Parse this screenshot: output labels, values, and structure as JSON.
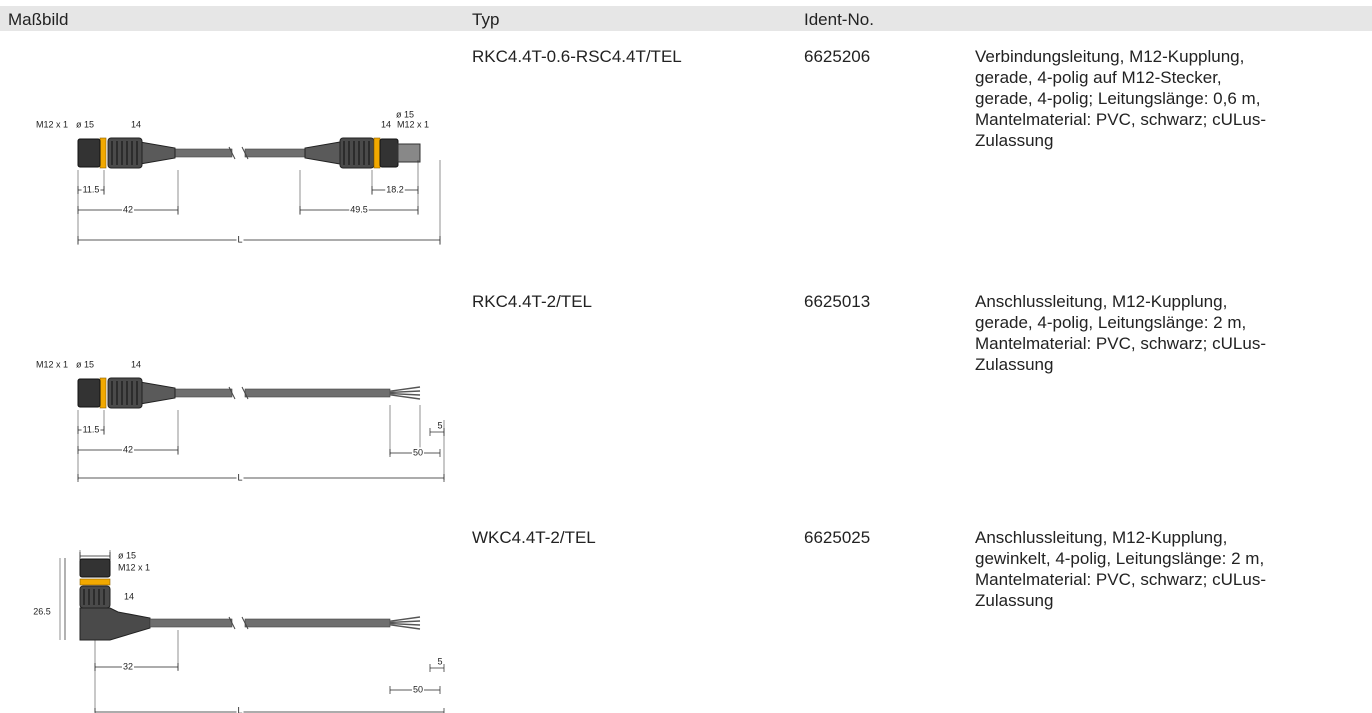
{
  "header": {
    "drawing": "Maßbild",
    "type": "Typ",
    "ident": "Ident-No."
  },
  "rows": [
    {
      "type": "RKC4.4T-0.6-RSC4.4T/TEL",
      "ident": "6625206",
      "description": [
        "Verbindungsleitung, M12-Kupplung,",
        "gerade, 4-polig auf M12-Stecker,",
        "gerade, 4-polig; Leitungslänge: 0,6 m,",
        "Mantelmaterial: PVC, schwarz; cULus-",
        "Zulassung"
      ],
      "drawing_labels": [
        "M12 x 1",
        "ø 15",
        "14",
        "11.5",
        "42",
        "L",
        "ø 15",
        "14",
        "M12 x 1",
        "18.2",
        "49.5"
      ]
    },
    {
      "type": "RKC4.4T-2/TEL",
      "ident": "6625013",
      "description": [
        "Anschlussleitung, M12-Kupplung,",
        "gerade, 4-polig, Leitungslänge: 2 m,",
        "Mantelmaterial: PVC, schwarz; cULus-",
        "Zulassung"
      ],
      "drawing_labels": [
        "M12 x 1",
        "ø 15",
        "14",
        "11.5",
        "42",
        "L",
        "5",
        "50"
      ]
    },
    {
      "type": "WKC4.4T-2/TEL",
      "ident": "6625025",
      "description": [
        "Anschlussleitung, M12-Kupplung,",
        "gewinkelt, 4-polig, Leitungslänge: 2 m,",
        "Mantelmaterial: PVC, schwarz; cULus-",
        "Zulassung"
      ],
      "drawing_labels": [
        "ø 15",
        "M12 x 1",
        "14",
        "26.5",
        "32",
        "5",
        "50",
        "L"
      ]
    }
  ]
}
